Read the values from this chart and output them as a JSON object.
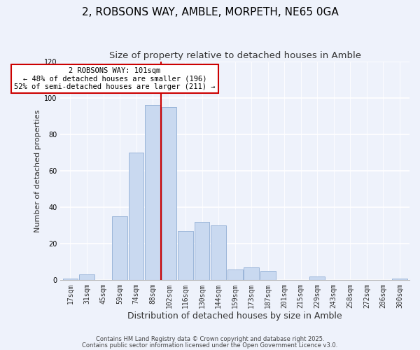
{
  "title": "2, ROBSONS WAY, AMBLE, MORPETH, NE65 0GA",
  "subtitle": "Size of property relative to detached houses in Amble",
  "xlabel": "Distribution of detached houses by size in Amble",
  "ylabel": "Number of detached properties",
  "bar_labels": [
    "17sqm",
    "31sqm",
    "45sqm",
    "59sqm",
    "74sqm",
    "88sqm",
    "102sqm",
    "116sqm",
    "130sqm",
    "144sqm",
    "159sqm",
    "173sqm",
    "187sqm",
    "201sqm",
    "215sqm",
    "229sqm",
    "243sqm",
    "258sqm",
    "272sqm",
    "286sqm",
    "300sqm"
  ],
  "bar_values": [
    1,
    3,
    0,
    35,
    70,
    96,
    95,
    27,
    32,
    30,
    6,
    7,
    5,
    0,
    0,
    2,
    0,
    0,
    0,
    0,
    1
  ],
  "bar_color": "#c9d9f0",
  "bar_edge_color": "#9ab5d9",
  "vline_color": "#cc0000",
  "ylim": [
    0,
    120
  ],
  "annotation_text": "2 ROBSONS WAY: 101sqm\n← 48% of detached houses are smaller (196)\n52% of semi-detached houses are larger (211) →",
  "annotation_box_color": "#ffffff",
  "annotation_box_edge": "#cc0000",
  "footnote1": "Contains HM Land Registry data © Crown copyright and database right 2025.",
  "footnote2": "Contains public sector information licensed under the Open Government Licence v3.0.",
  "background_color": "#eef2fb",
  "grid_color": "#ffffff",
  "title_fontsize": 11,
  "subtitle_fontsize": 9.5,
  "xlabel_fontsize": 9,
  "ylabel_fontsize": 8,
  "tick_fontsize": 7,
  "annotation_fontsize": 7.5,
  "footnote_fontsize": 6
}
